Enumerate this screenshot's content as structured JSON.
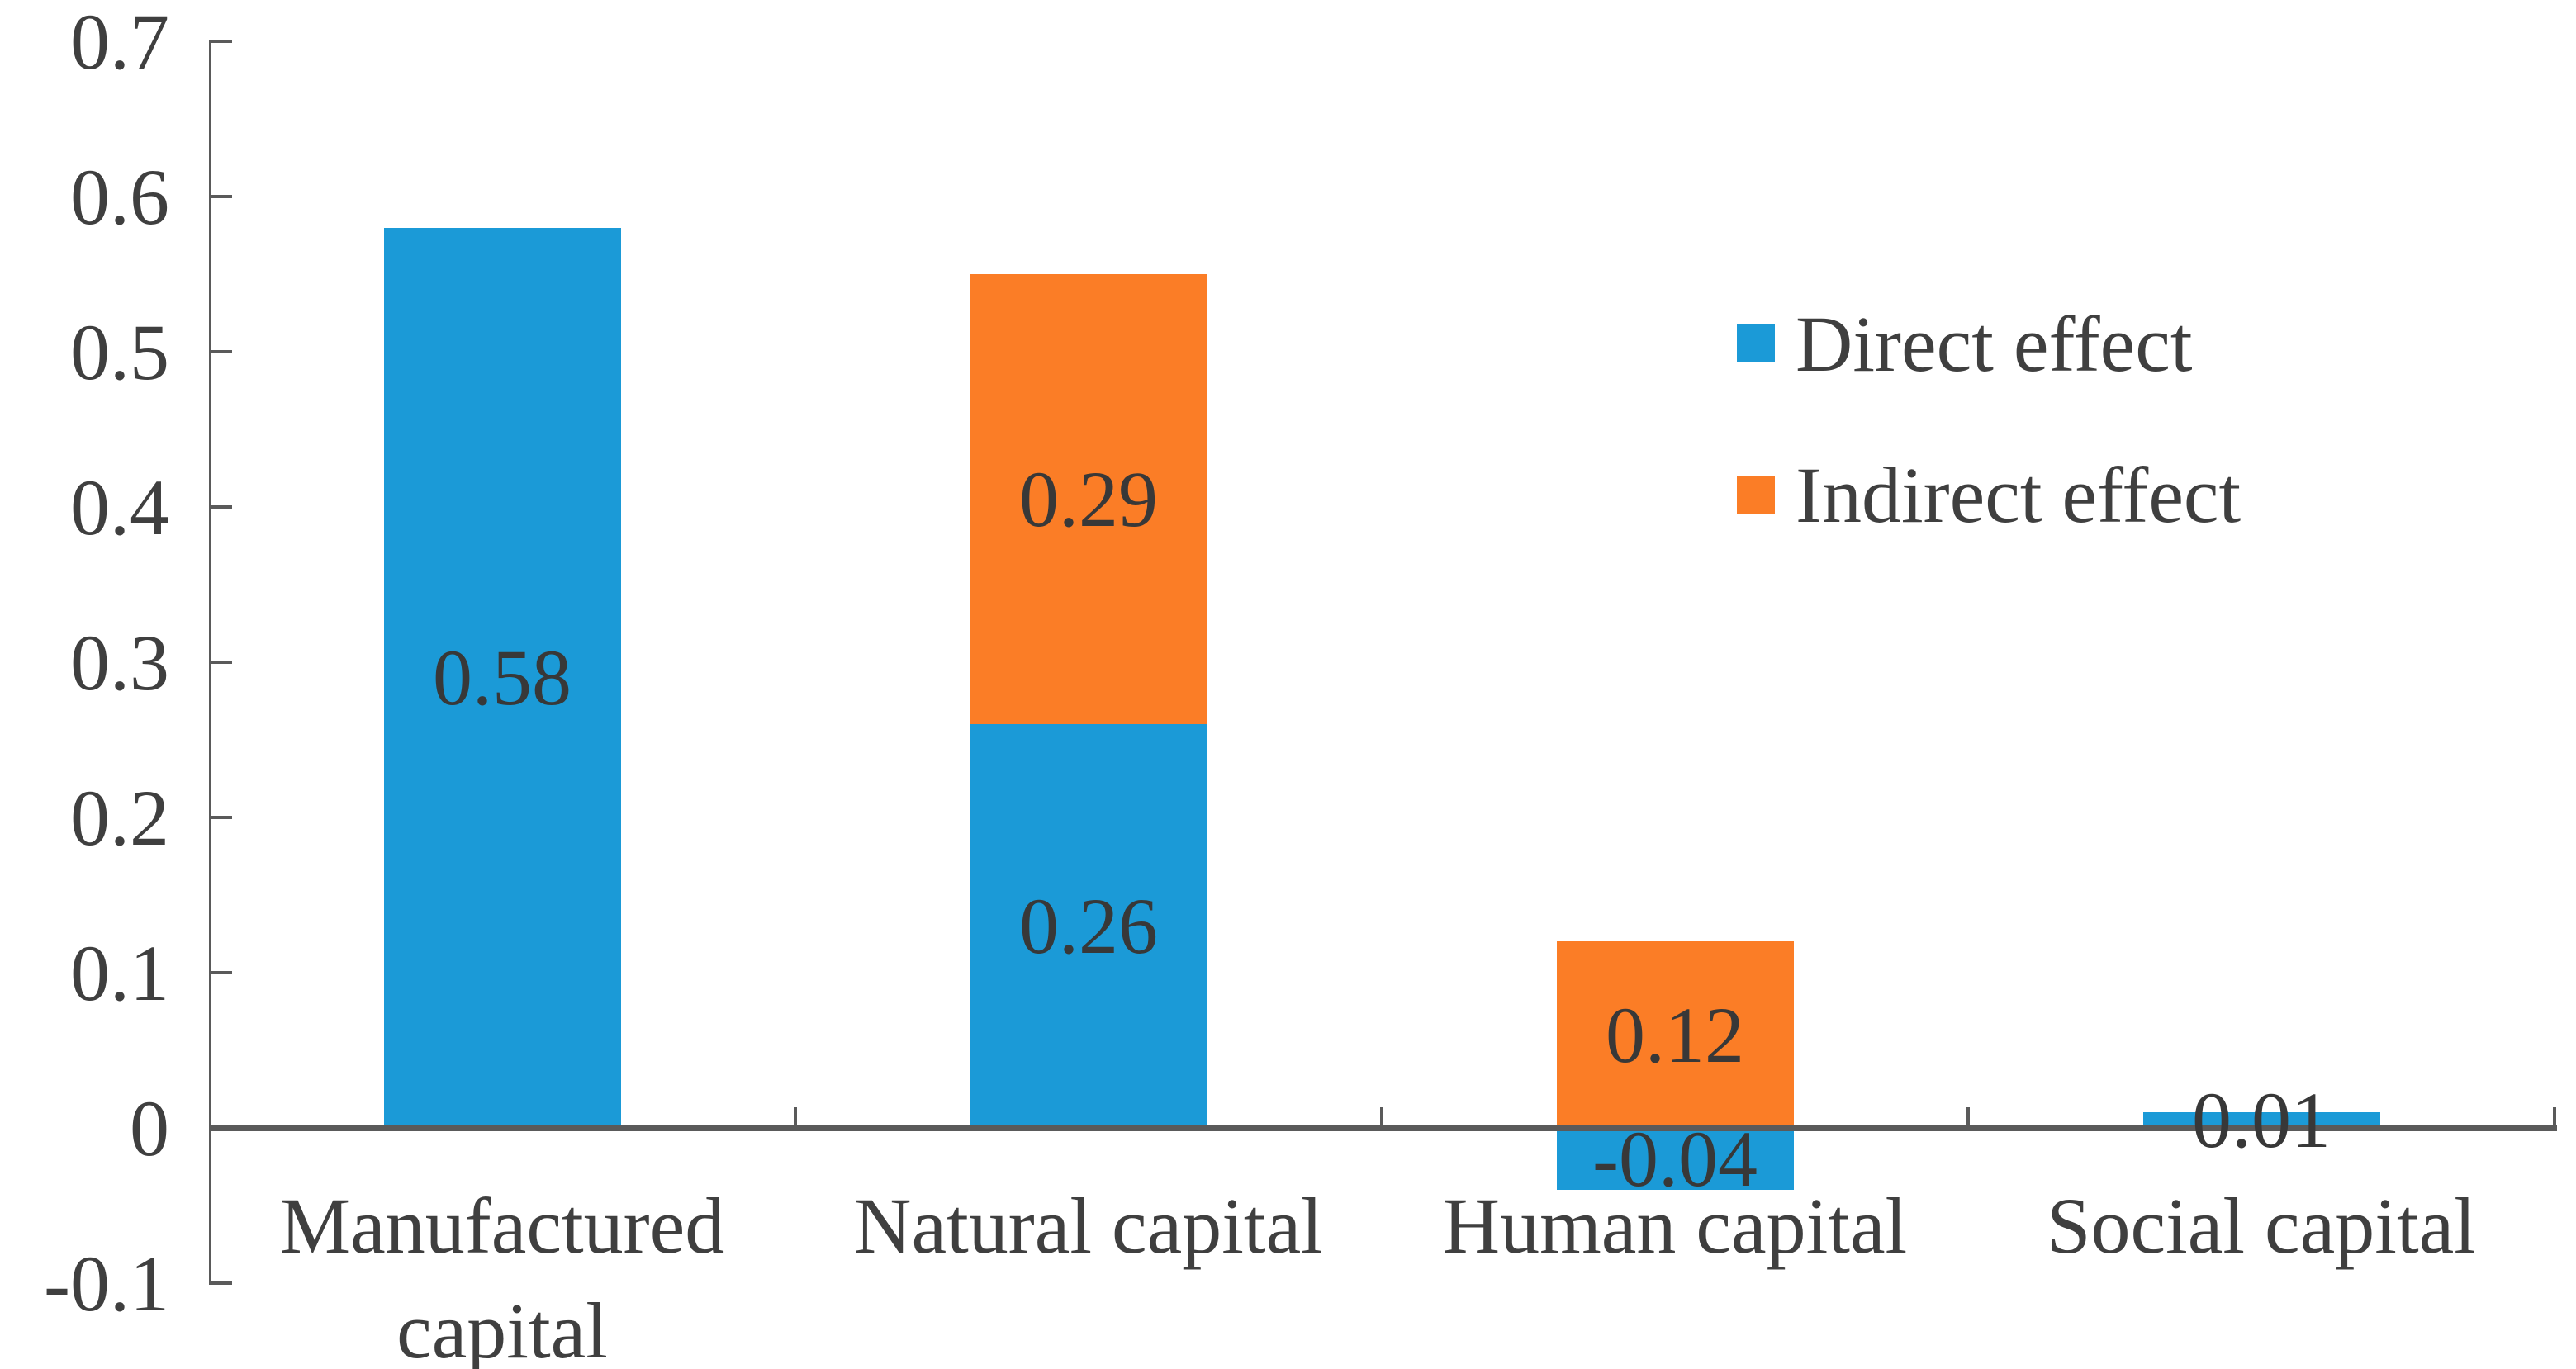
{
  "chart_data": {
    "type": "bar",
    "stacked": true,
    "title": "",
    "xlabel": "",
    "ylabel": "",
    "grid": false,
    "legend_position": "upper-right-inside",
    "categories": [
      "Manufactured capital",
      "Natural capital",
      "Human capital",
      "Social capital"
    ],
    "series": [
      {
        "name": "Direct effect",
        "color": "#1b9ad7",
        "values": [
          0.58,
          0.26,
          -0.04,
          0.01
        ],
        "labels": [
          "0.58",
          "0.26",
          "-0.04",
          "0.01"
        ]
      },
      {
        "name": "Indirect effect",
        "color": "#fb7d26",
        "values": [
          null,
          0.29,
          0.12,
          null
        ],
        "labels": [
          null,
          "0.29",
          "0.12",
          null
        ]
      }
    ],
    "ylim": [
      -0.1,
      0.7
    ],
    "y_ticks": [
      {
        "label": "0.7",
        "value": 0.7
      },
      {
        "label": "0.6",
        "value": 0.6
      },
      {
        "label": "0.5",
        "value": 0.5
      },
      {
        "label": "0.4",
        "value": 0.4
      },
      {
        "label": "0.3",
        "value": 0.3
      },
      {
        "label": "0.2",
        "value": 0.2
      },
      {
        "label": "0.1",
        "value": 0.1
      },
      {
        "label": "0",
        "value": 0
      },
      {
        "label": "-0.1",
        "value": -0.1
      }
    ],
    "colors": {
      "axis": "#5a5a5a",
      "text": "#3f3f3f",
      "value_label_text": "#383838"
    }
  }
}
